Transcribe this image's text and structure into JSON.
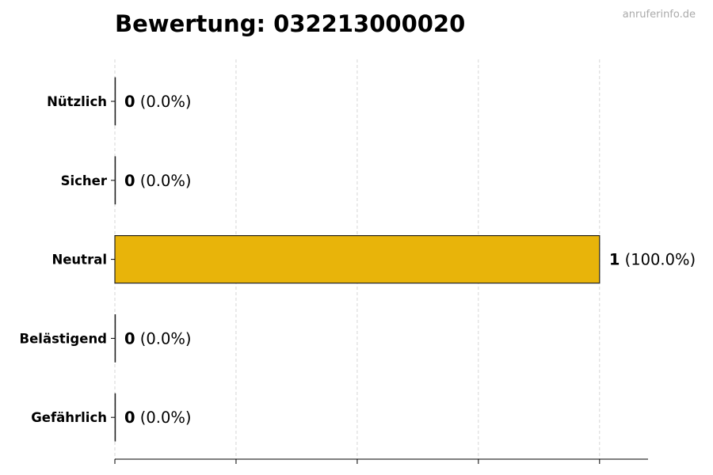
{
  "watermark": "anruferinfo.de",
  "chart_data": {
    "type": "bar",
    "orientation": "horizontal",
    "title": "Bewertung: 032213000020",
    "categories": [
      "Nützlich",
      "Sicher",
      "Neutral",
      "Belästigend",
      "Gefährlich"
    ],
    "values": [
      0,
      0,
      1,
      0,
      0
    ],
    "labels": [
      {
        "count": "0",
        "pct": "(0.0%)"
      },
      {
        "count": "0",
        "pct": "(0.0%)"
      },
      {
        "count": "1",
        "pct": "(100.0%)"
      },
      {
        "count": "0",
        "pct": "(0.0%)"
      },
      {
        "count": "0",
        "pct": "(0.0%)"
      }
    ],
    "xlim": [
      0,
      1.1
    ],
    "xticks": [
      0,
      0.25,
      0.5,
      0.75,
      1
    ],
    "xtick_labels_shown": false,
    "grid": "x, dashed",
    "bar_color": "#E8B40A",
    "xlabel": "",
    "ylabel": ""
  }
}
